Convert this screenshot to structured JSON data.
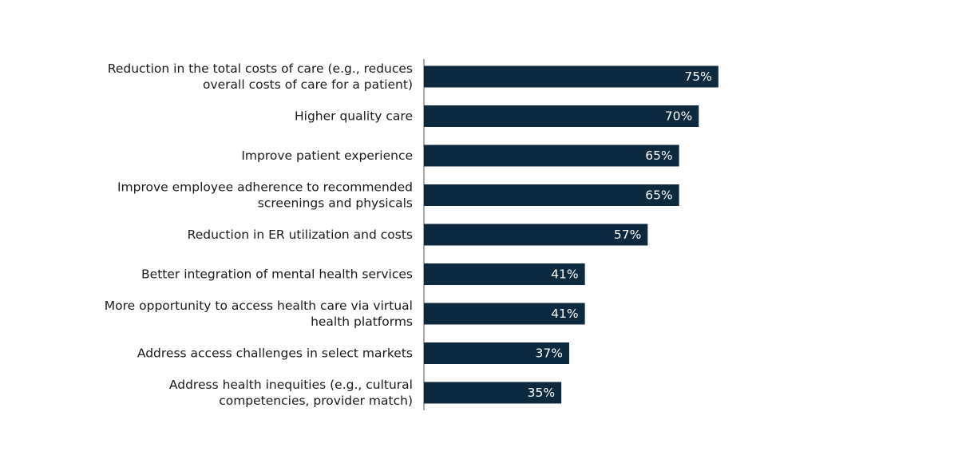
{
  "chart_data": {
    "type": "bar",
    "orientation": "horizontal",
    "categories": [
      [
        "Reduction in the total costs of care (e.g., reduces",
        "overall costs of care for a patient)"
      ],
      [
        "Higher quality care"
      ],
      [
        "Improve patient experience"
      ],
      [
        "Improve employee adherence to recommended",
        "screenings and physicals"
      ],
      [
        "Reduction in ER utilization and costs"
      ],
      [
        "Better integration of mental health services"
      ],
      [
        "More opportunity to access health care via virtual",
        "health platforms"
      ],
      [
        "Address access challenges in select markets"
      ],
      [
        "Address health inequities (e.g., cultural",
        "competencies, provider match)"
      ]
    ],
    "values": [
      75,
      70,
      65,
      65,
      57,
      41,
      41,
      37,
      35
    ],
    "value_suffix": "%",
    "title": "",
    "xlabel": "",
    "ylabel": "",
    "xlim": [
      0,
      100
    ],
    "grid": false,
    "legend": "none",
    "colors": {
      "bar": "#0b2a3f",
      "axis": "#8a8a8a",
      "label_text": "#1a1a1a",
      "value_text": "#ffffff"
    }
  }
}
